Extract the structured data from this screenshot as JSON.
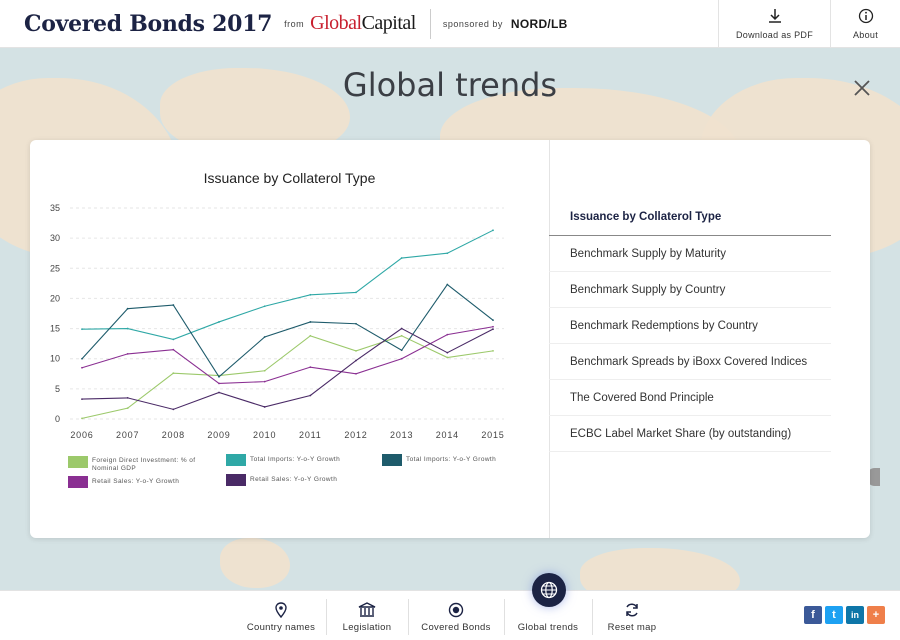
{
  "header": {
    "title": "Covered Bonds 2017",
    "from": "from",
    "publisher_a": "Global",
    "publisher_b": "Capital",
    "sponsored": "sponsored by",
    "sponsor_a": "NORD",
    "sponsor_b": "/LB",
    "download_label": "Download as PDF",
    "about_label": "About"
  },
  "page": {
    "title": "Global trends"
  },
  "menu": {
    "items": [
      "Issuance by Collaterol Type",
      "Benchmark Supply by Maturity",
      "Benchmark Supply by Country",
      "Benchmark Redemptions by Country",
      "Benchmark Spreads by iBoxx Covered Indices",
      "The Covered Bond Principle",
      "ECBC Label Market Share (by outstanding)"
    ],
    "active_index": 0
  },
  "chart_data": {
    "type": "line",
    "title": "Issuance by Collaterol Type",
    "xlabel": "",
    "ylabel": "",
    "x": [
      "2006",
      "2007",
      "2008",
      "2009",
      "2010",
      "2011",
      "2012",
      "2013",
      "2014",
      "2015"
    ],
    "yticks": [
      "0",
      "5",
      "10",
      "15",
      "20",
      "25",
      "30",
      "35"
    ],
    "ylim": [
      0,
      35
    ],
    "grid": true,
    "series": [
      {
        "name": "Foreign Direct Investment: % of Nominal GDP",
        "color": "#9cc96b",
        "values": [
          0.1,
          1.8,
          7.6,
          7.2,
          8.0,
          13.8,
          11.3,
          13.8,
          10.2,
          11.3
        ]
      },
      {
        "name": "Total Imports: Y-o-Y Growth",
        "color": "#2fa8a6",
        "values": [
          14.9,
          15.0,
          13.2,
          16.1,
          18.7,
          20.6,
          21.0,
          26.7,
          27.5,
          31.3
        ]
      },
      {
        "name": "Total Imports: Y-o-Y Growth",
        "color": "#1e5b6b",
        "values": [
          10.0,
          18.3,
          18.9,
          7.0,
          13.6,
          16.1,
          15.8,
          11.4,
          22.3,
          16.4
        ]
      },
      {
        "name": "Retail Sales: Y-o-Y Growth",
        "color": "#8a2f92",
        "values": [
          8.5,
          10.8,
          11.5,
          5.9,
          6.2,
          8.6,
          7.5,
          10.0,
          14.0,
          15.3
        ]
      },
      {
        "name": "Retail Sales: Y-o-Y Growth",
        "color": "#4a2a66",
        "values": [
          3.3,
          3.5,
          1.6,
          4.4,
          2.0,
          3.9,
          9.7,
          15.0,
          11.0,
          14.9
        ]
      }
    ],
    "legend_placement": "bottom"
  },
  "bottom_nav": {
    "items": [
      "Country names",
      "Legislation",
      "Covered Bonds",
      "Global trends",
      "Reset map"
    ]
  },
  "social": {
    "facebook": "f",
    "twitter": "t",
    "linkedin": "in",
    "plus": "+"
  },
  "colors": {
    "navy": "#1c2344",
    "brand_red": "#c8202f"
  }
}
